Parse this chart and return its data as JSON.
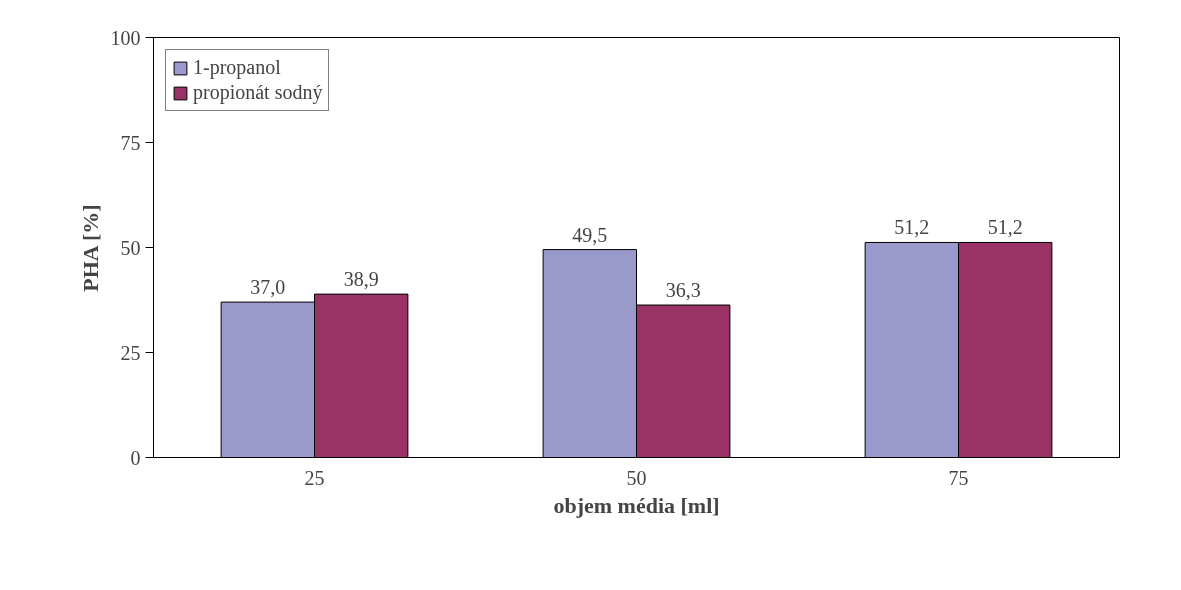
{
  "chart_data": {
    "type": "bar",
    "xlabel": "objem média [ml]",
    "ylabel": "PHA [%]",
    "categories": [
      "25",
      "50",
      "75"
    ],
    "series": [
      {
        "name": "1-propanol",
        "color": "#9999cc",
        "values": [
          37.0,
          49.5,
          51.2
        ],
        "value_labels": [
          "37,0",
          "49,5",
          "51,2"
        ]
      },
      {
        "name": "propionát sodný",
        "color": "#993366",
        "values": [
          38.9,
          36.3,
          51.2
        ],
        "value_labels": [
          "38,9",
          "36,3",
          "51,2"
        ]
      }
    ],
    "ylim": [
      0,
      100
    ],
    "yticks": [
      0,
      25,
      50,
      75,
      100
    ],
    "grid": false,
    "legend": "top left"
  }
}
